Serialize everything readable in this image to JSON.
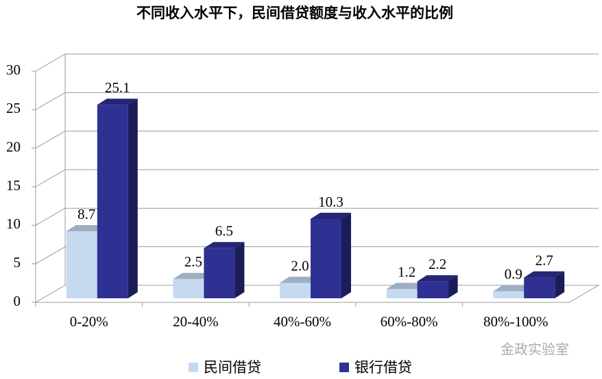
{
  "chart_data": {
    "type": "bar3d",
    "title": "不同收入水平下，民间借贷额度与收入水平的比例",
    "categories": [
      "0-20%",
      "20-40%",
      "40%-60%",
      "60%-80%",
      "80%-100%"
    ],
    "series": [
      {
        "name": "民间借贷",
        "color": "#c6d9f1",
        "values": [
          8.7,
          2.5,
          2.0,
          1.2,
          0.9
        ],
        "value_labels": [
          "8.7",
          "2.5",
          "2.0",
          "1.2",
          "0.9"
        ]
      },
      {
        "name": "银行借贷",
        "color": "#2e3192",
        "values": [
          25.1,
          6.5,
          10.3,
          2.2,
          2.7
        ],
        "value_labels": [
          "25.1",
          "6.5",
          "10.3",
          "2.2",
          "2.7"
        ]
      }
    ],
    "ylim": [
      0,
      30
    ],
    "yticks": [
      0,
      5,
      10,
      15,
      20,
      25,
      30
    ],
    "grid": true,
    "legend": "bottom",
    "watermark": "金政实验室"
  }
}
